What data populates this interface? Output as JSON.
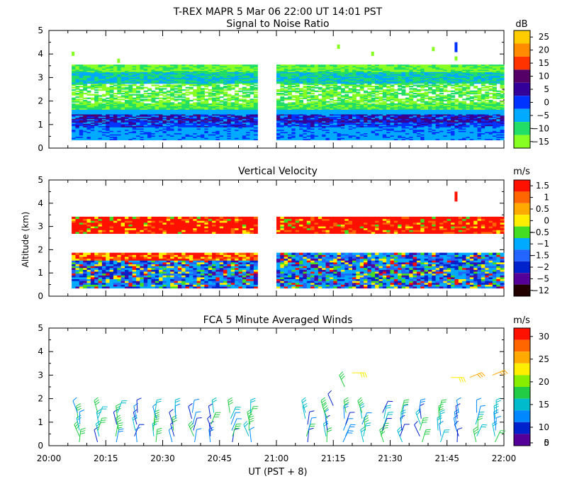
{
  "title": "T-REX   MAPR   5 Mar 06   22:00 UT   14:01   PST",
  "xlabel": "UT  (PST + 8)",
  "ylabel": "Altitude (km)",
  "xticks": [
    "20:00",
    "20:15",
    "20:30",
    "20:45",
    "21:00",
    "21:15",
    "21:30",
    "21:45",
    "22:00"
  ],
  "yticks": [
    "0",
    "1",
    "2",
    "3",
    "4",
    "5"
  ],
  "chart_data": [
    {
      "type": "heatmap",
      "title": "Signal to Noise Ratio",
      "unit": "dB",
      "xlim": [
        0,
        120
      ],
      "ylim": [
        0,
        5
      ],
      "colorbar_ticks": [
        "25",
        "20",
        "15",
        "10",
        "5",
        "0",
        "−5",
        "−10",
        "−15"
      ],
      "colors": [
        "#ffcc00",
        "#ff8c00",
        "#ff3300",
        "#550066",
        "#330099",
        "#0033ff",
        "#00aaff",
        "#22dd66",
        "#88ff22"
      ],
      "gaps": [
        [
          55,
          60
        ]
      ],
      "bands": [
        {
          "y0": 0.3,
          "y1": 1.1,
          "value": "0 to 5 dB"
        },
        {
          "y0": 1.1,
          "y1": 1.5,
          "value": "5 to 10 dB"
        },
        {
          "y0": 1.5,
          "y1": 3.5,
          "value": "−15 to −5 dB"
        }
      ]
    },
    {
      "type": "heatmap",
      "title": "Vertical Velocity",
      "unit": "m/s",
      "xlim": [
        0,
        120
      ],
      "ylim": [
        0,
        5
      ],
      "colorbar_ticks": [
        "1.5",
        "1",
        "0.5",
        "0",
        "−0.5",
        "−1",
        "−1.5",
        "−2",
        "−5",
        "−12"
      ],
      "colors": [
        "#ff1100",
        "#ff6600",
        "#ffaa00",
        "#ffee00",
        "#44dd22",
        "#00aaff",
        "#2266ff",
        "#0022cc",
        "#550099",
        "#220000"
      ],
      "gaps": [
        [
          55,
          60
        ]
      ],
      "bands": [
        {
          "y0": 0.3,
          "y1": 1.8,
          "value": "mixed −2 to 1.5 m/s"
        },
        {
          "y0": 2.7,
          "y1": 3.4,
          "value": "1.5 m/s"
        }
      ]
    },
    {
      "type": "wind_barbs",
      "title": "FCA 5 Minute Averaged Winds",
      "unit": "m/s",
      "xlim": [
        0,
        120
      ],
      "ylim": [
        0,
        5
      ],
      "colorbar_ticks": [
        "30",
        "25",
        "20",
        "15",
        "10",
        "5",
        "0"
      ],
      "colors": [
        "#ff1100",
        "#ff6600",
        "#ffaa00",
        "#ffee00",
        "#88ee00",
        "#22cc44",
        "#00bbcc",
        "#0088ff",
        "#0022cc",
        "#550099"
      ],
      "columns_x": [
        8,
        13,
        18,
        23,
        28,
        33,
        38,
        43,
        48,
        53,
        68,
        73,
        78,
        83,
        88,
        93,
        98,
        103,
        108,
        113,
        118
      ],
      "low_level_speed_range": [
        3,
        15
      ],
      "upper_barbs": [
        {
          "x": 75,
          "y": 1.7,
          "speed": 5
        },
        {
          "x": 80,
          "y": 3.1,
          "speed": 20
        },
        {
          "x": 78,
          "y": 2.5,
          "speed": 15
        },
        {
          "x": 106,
          "y": 2.9,
          "speed": 20
        },
        {
          "x": 111,
          "y": 2.9,
          "speed": 22
        },
        {
          "x": 117,
          "y": 3.0,
          "speed": 25
        }
      ]
    }
  ]
}
